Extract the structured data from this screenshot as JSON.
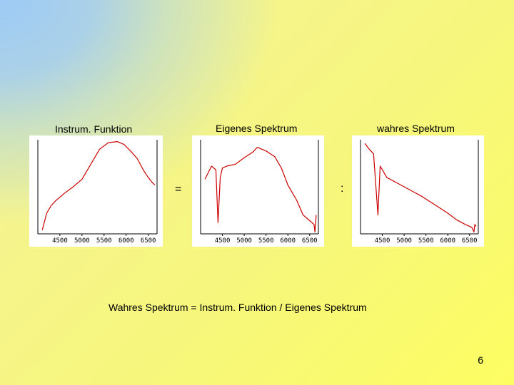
{
  "slide": {
    "formula": "Wahres Spektrum = Instrum. Funktion / Eigenes Spektrum",
    "page_number": "6",
    "operator_equals": "=",
    "operator_divide": ":"
  },
  "chart_data": [
    {
      "type": "line",
      "title": "Instrum. Funktion",
      "xlabel": "",
      "ylabel": "",
      "xlim": [
        4000,
        6700
      ],
      "x_ticks": [
        "4500",
        "5000",
        "5500",
        "6000",
        "6500"
      ],
      "color": "#cc0000",
      "series": [
        {
          "x": [
            4100,
            4200,
            4300,
            4400,
            4600,
            4800,
            5000,
            5200,
            5400,
            5600,
            5800,
            5950,
            6100,
            6250,
            6400,
            6500,
            6600,
            6650
          ],
          "values": [
            0.04,
            0.22,
            0.3,
            0.35,
            0.43,
            0.5,
            0.58,
            0.74,
            0.9,
            0.97,
            0.98,
            0.95,
            0.88,
            0.8,
            0.67,
            0.6,
            0.54,
            0.52
          ]
        }
      ]
    },
    {
      "type": "line",
      "title": "Eigenes Spektrum",
      "xlabel": "",
      "ylabel": "",
      "xlim": [
        4000,
        6700
      ],
      "x_ticks": [
        "4500",
        "5000",
        "5500",
        "6000",
        "6500"
      ],
      "color": "#cc0000",
      "series": [
        {
          "x": [
            4100,
            4250,
            4350,
            4400,
            4450,
            4500,
            4600,
            4800,
            5000,
            5200,
            5300,
            5500,
            5700,
            5850,
            6000,
            6200,
            6350,
            6500,
            6600,
            6620,
            6650
          ],
          "values": [
            0.58,
            0.72,
            0.68,
            0.12,
            0.6,
            0.7,
            0.72,
            0.74,
            0.81,
            0.87,
            0.92,
            0.88,
            0.82,
            0.7,
            0.52,
            0.36,
            0.2,
            0.14,
            0.1,
            0.02,
            0.2
          ]
        }
      ]
    },
    {
      "type": "line",
      "title": "wahres Spektrum",
      "xlabel": "",
      "ylabel": "",
      "xlim": [
        4000,
        6700
      ],
      "x_ticks": [
        "4500",
        "5000",
        "5500",
        "6000",
        "6500"
      ],
      "color": "#cc0000",
      "series": [
        {
          "x": [
            4100,
            4200,
            4300,
            4400,
            4450,
            4500,
            4600,
            4800,
            5000,
            5200,
            5400,
            5600,
            5800,
            6000,
            6200,
            6400,
            6550,
            6600,
            6620,
            6650
          ],
          "values": [
            0.96,
            0.9,
            0.85,
            0.2,
            0.72,
            0.68,
            0.6,
            0.55,
            0.5,
            0.45,
            0.4,
            0.34,
            0.28,
            0.22,
            0.15,
            0.1,
            0.07,
            0.02,
            0.1,
            0.08
          ]
        }
      ]
    }
  ]
}
